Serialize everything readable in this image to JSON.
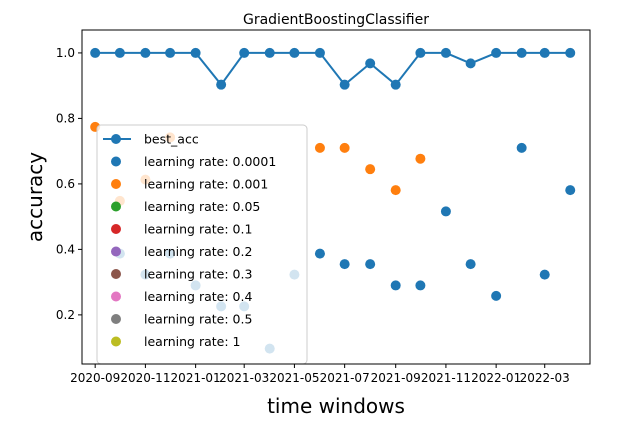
{
  "chart_data": {
    "type": "scatter",
    "title": "GradientBoostingClassifier",
    "xlabel": "time windows",
    "ylabel": "accuracy",
    "ylim": [
      0.05,
      1.07
    ],
    "xlim": [
      "2020-08-16",
      "2022-04-25"
    ],
    "x_tick_labels": [
      "2020-09",
      "2020-11",
      "2021-01",
      "2021-03",
      "2021-05",
      "2021-07",
      "2021-09",
      "2021-11",
      "2022-01",
      "2022-03"
    ],
    "x_tick_dates": [
      "2020-09-01",
      "2020-11-01",
      "2021-01-01",
      "2021-03-01",
      "2021-05-01",
      "2021-07-01",
      "2021-09-01",
      "2021-11-01",
      "2022-01-01",
      "2022-03-01"
    ],
    "y_ticks": [
      0.2,
      0.4,
      0.6,
      0.8,
      1.0
    ],
    "y_tick_labels": [
      "0.2",
      "0.4",
      "0.6",
      "0.8",
      "1.0"
    ],
    "grid": false,
    "legend_position": "center-left",
    "x": [
      "2020-09-01",
      "2020-10-01",
      "2020-11-01",
      "2020-12-01",
      "2021-01-01",
      "2021-02-01",
      "2021-03-01",
      "2021-04-01",
      "2021-05-01",
      "2021-06-01",
      "2021-07-01",
      "2021-08-01",
      "2021-09-01",
      "2021-10-01",
      "2021-11-01",
      "2021-12-01",
      "2022-01-01",
      "2022-02-01",
      "2022-03-01",
      "2022-04-01"
    ],
    "series": [
      {
        "name": "best_acc",
        "kind": "line",
        "color": "#1f77b4",
        "values": [
          1.0,
          1.0,
          1.0,
          1.0,
          1.0,
          0.903,
          1.0,
          1.0,
          1.0,
          1.0,
          0.903,
          0.968,
          0.903,
          1.0,
          1.0,
          0.968,
          1.0,
          1.0,
          1.0,
          1.0
        ]
      },
      {
        "name": "learning rate: 0.0001",
        "kind": "scatter",
        "color": "#1f77b4",
        "values": [
          null,
          0.387,
          0.323,
          0.387,
          0.29,
          0.226,
          0.226,
          0.097,
          0.323,
          0.387,
          0.355,
          0.355,
          0.29,
          0.29,
          0.516,
          0.355,
          0.258,
          0.71,
          0.323,
          0.581
        ]
      },
      {
        "name": "learning rate: 0.001",
        "kind": "scatter",
        "color": "#ff7f0e",
        "values": [
          0.774,
          0.548,
          0.613,
          0.742,
          null,
          null,
          null,
          null,
          null,
          0.71,
          0.71,
          0.645,
          0.581,
          0.677,
          null,
          null,
          null,
          null,
          null,
          null
        ]
      },
      {
        "name": "learning rate: 0.05",
        "kind": "scatter",
        "color": "#2ca02c",
        "values": []
      },
      {
        "name": "learning rate: 0.1",
        "kind": "scatter",
        "color": "#d62728",
        "values": []
      },
      {
        "name": "learning rate: 0.2",
        "kind": "scatter",
        "color": "#9467bd",
        "values": []
      },
      {
        "name": "learning rate: 0.3",
        "kind": "scatter",
        "color": "#8c564b",
        "values": []
      },
      {
        "name": "learning rate: 0.4",
        "kind": "scatter",
        "color": "#e377c2",
        "values": []
      },
      {
        "name": "learning rate: 0.5",
        "kind": "scatter",
        "color": "#7f7f7f",
        "values": []
      },
      {
        "name": "learning rate: 1",
        "kind": "scatter",
        "color": "#bcbd22",
        "values": []
      }
    ]
  }
}
